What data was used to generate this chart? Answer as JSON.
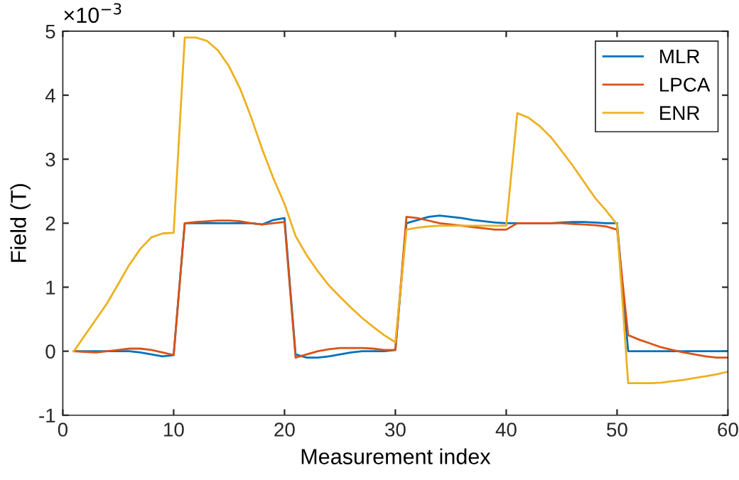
{
  "chart_data": {
    "type": "line",
    "xlabel": "Measurement index",
    "ylabel": "Field (T)",
    "annotations": [
      "×10$^{−3}$"
    ],
    "x": [
      1,
      2,
      3,
      4,
      5,
      6,
      7,
      8,
      9,
      10,
      11,
      12,
      13,
      14,
      15,
      16,
      17,
      18,
      19,
      20,
      21,
      22,
      23,
      24,
      25,
      26,
      27,
      28,
      29,
      30,
      31,
      32,
      33,
      34,
      35,
      36,
      37,
      38,
      39,
      40,
      41,
      42,
      43,
      44,
      45,
      46,
      47,
      48,
      49,
      50,
      51,
      52,
      53,
      54,
      55,
      56,
      57,
      58,
      59,
      60
    ],
    "series": [
      {
        "name": "MLR",
        "color": "#0072bd",
        "values": [
          0,
          0,
          0,
          0,
          0,
          0,
          -0.02,
          -0.05,
          -0.08,
          -0.06,
          2.0,
          2.0,
          2.0,
          2.0,
          2.0,
          2.0,
          2.0,
          1.98,
          2.05,
          2.08,
          -0.05,
          -0.1,
          -0.1,
          -0.08,
          -0.05,
          -0.02,
          0,
          0,
          0,
          0.02,
          2.0,
          2.05,
          2.1,
          2.12,
          2.1,
          2.08,
          2.05,
          2.03,
          2.01,
          2.0,
          2.0,
          2.0,
          2.0,
          2.0,
          2.01,
          2.02,
          2.02,
          2.01,
          2.0,
          2.0,
          0,
          0,
          0,
          0,
          0,
          0,
          0,
          0,
          0,
          0
        ]
      },
      {
        "name": "LPCA",
        "color": "#d95319",
        "values": [
          0,
          -0.01,
          -0.02,
          0,
          0.02,
          0.04,
          0.04,
          0.02,
          -0.02,
          -0.06,
          2.0,
          2.02,
          2.03,
          2.04,
          2.04,
          2.03,
          2.0,
          1.98,
          2.0,
          2.02,
          -0.1,
          -0.05,
          0,
          0.03,
          0.05,
          0.05,
          0.05,
          0.04,
          0.02,
          0.02,
          2.1,
          2.08,
          2.04,
          2.0,
          1.98,
          1.96,
          1.94,
          1.92,
          1.9,
          1.9,
          2.0,
          2.0,
          2.0,
          2.0,
          2.0,
          1.99,
          1.98,
          1.97,
          1.95,
          1.9,
          0.25,
          0.18,
          0.12,
          0.06,
          0.02,
          -0.02,
          -0.05,
          -0.08,
          -0.1,
          -0.1
        ]
      },
      {
        "name": "ENR",
        "color": "#edb120",
        "values": [
          0,
          0.25,
          0.5,
          0.75,
          1.05,
          1.35,
          1.6,
          1.78,
          1.84,
          1.85,
          4.9,
          4.9,
          4.85,
          4.7,
          4.45,
          4.1,
          3.65,
          3.15,
          2.7,
          2.3,
          1.8,
          1.5,
          1.25,
          1.03,
          0.85,
          0.68,
          0.52,
          0.38,
          0.25,
          0.14,
          1.9,
          1.93,
          1.95,
          1.96,
          1.96,
          1.96,
          1.96,
          1.96,
          1.96,
          1.96,
          3.72,
          3.65,
          3.52,
          3.35,
          3.13,
          2.9,
          2.65,
          2.4,
          2.2,
          1.98,
          -0.5,
          -0.5,
          -0.5,
          -0.49,
          -0.47,
          -0.45,
          -0.42,
          -0.39,
          -0.36,
          -0.32
        ]
      }
    ],
    "xlim": [
      0,
      60
    ],
    "ylim": [
      -1,
      5
    ],
    "xticks": [
      0,
      10,
      20,
      30,
      40,
      50,
      60
    ],
    "yticks": [
      -1,
      0,
      1,
      2,
      3,
      4,
      5
    ],
    "legend": "top right",
    "grid": false,
    "marker": "none",
    "line_style": "solid"
  }
}
